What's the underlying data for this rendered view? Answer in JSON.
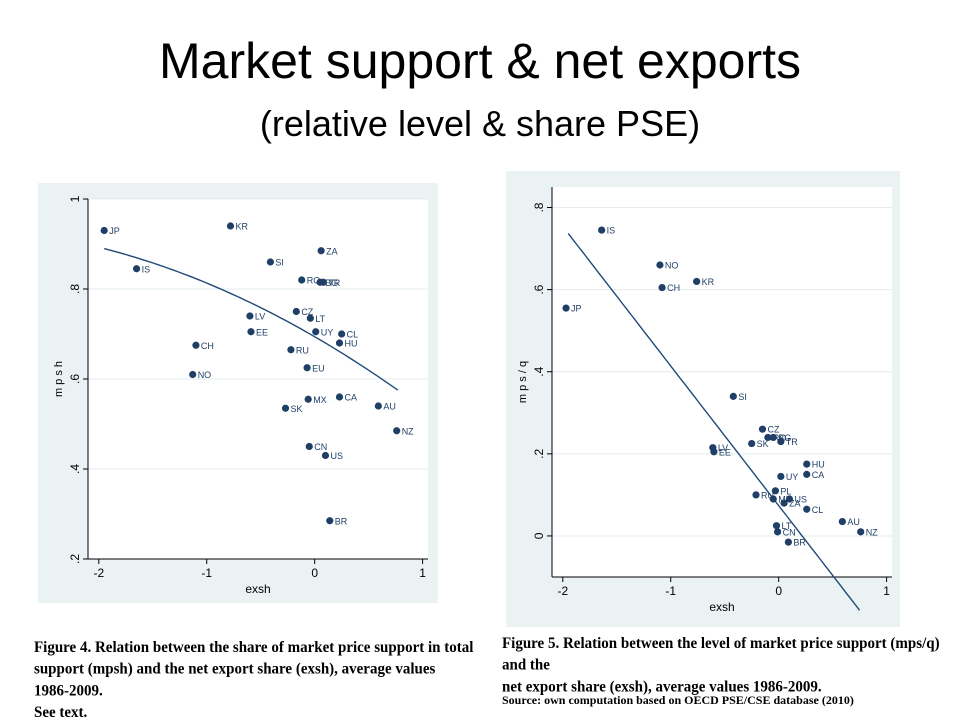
{
  "title": "Market support & net exports",
  "subtitle": "(relative level & share PSE)",
  "left_caption": [
    "Figure 4. Relation between the share of market price support in total",
    "support (mpsh) and the net export share (exsh), average values 1986-2009.",
    "See text."
  ],
  "right_caption": [
    "Figure 5. Relation between the level of market price support (mps/q) and the",
    "net export share (exsh), average values 1986-2009."
  ],
  "source_note": "Source: own computation based on OECD PSE/CSE database (2010)",
  "colors": {
    "point": "#1f3f66",
    "fit": "#1f4a78",
    "plot_bg": "#ffffff",
    "panel_bg": "#eaf2f3",
    "axis": "#000000"
  },
  "chart_data": [
    {
      "type": "scatter",
      "title": "",
      "xlabel": "exsh",
      "ylabel": "m p s h",
      "xlim": [
        -2.1,
        1.05
      ],
      "ylim": [
        0.2,
        1.0
      ],
      "xticks": [
        "-2",
        "-1",
        "0",
        "1"
      ],
      "yticks": [
        ".2",
        ".4",
        ".6",
        ".8",
        "1"
      ],
      "grid": true,
      "fit": {
        "type": "quadratic",
        "coef": [
          0.694,
          -0.139,
          -0.0198
        ],
        "x_range": [
          -1.95,
          0.77
        ]
      },
      "points": [
        {
          "label": "JP",
          "x": -1.95,
          "y": 0.93
        },
        {
          "label": "IS",
          "x": -1.65,
          "y": 0.845
        },
        {
          "label": "KR",
          "x": -0.78,
          "y": 0.94
        },
        {
          "label": "SI",
          "x": -0.41,
          "y": 0.86
        },
        {
          "label": "ZA",
          "x": 0.06,
          "y": 0.885
        },
        {
          "label": "RO",
          "x": -0.12,
          "y": 0.82
        },
        {
          "label": "BG",
          "x": 0.05,
          "y": 0.815
        },
        {
          "label": "TR",
          "x": 0.08,
          "y": 0.815
        },
        {
          "label": "CZ",
          "x": -0.17,
          "y": 0.75
        },
        {
          "label": "LV",
          "x": -0.6,
          "y": 0.74
        },
        {
          "label": "LT",
          "x": -0.04,
          "y": 0.735
        },
        {
          "label": "EE",
          "x": -0.59,
          "y": 0.705
        },
        {
          "label": "UY",
          "x": 0.01,
          "y": 0.705
        },
        {
          "label": "CL",
          "x": 0.25,
          "y": 0.7
        },
        {
          "label": "HU",
          "x": 0.23,
          "y": 0.68
        },
        {
          "label": "CH",
          "x": -1.1,
          "y": 0.675
        },
        {
          "label": "RU",
          "x": -0.22,
          "y": 0.665
        },
        {
          "label": "EU",
          "x": -0.07,
          "y": 0.625
        },
        {
          "label": "NO",
          "x": -1.13,
          "y": 0.61
        },
        {
          "label": "CA",
          "x": 0.23,
          "y": 0.56
        },
        {
          "label": "MX",
          "x": -0.06,
          "y": 0.555
        },
        {
          "label": "AU",
          "x": 0.59,
          "y": 0.54
        },
        {
          "label": "SK",
          "x": -0.27,
          "y": 0.535
        },
        {
          "label": "NZ",
          "x": 0.76,
          "y": 0.485
        },
        {
          "label": "CN",
          "x": -0.05,
          "y": 0.45
        },
        {
          "label": "US",
          "x": 0.1,
          "y": 0.43
        },
        {
          "label": "BR",
          "x": 0.14,
          "y": 0.285
        }
      ]
    },
    {
      "type": "scatter",
      "title": "",
      "xlabel": "exsh",
      "ylabel": "m p s / q",
      "xlim": [
        -2.1,
        1.05
      ],
      "ylim": [
        -0.1,
        0.85
      ],
      "xticks": [
        "-2",
        "-1",
        "0",
        "1"
      ],
      "yticks": [
        "0",
        ".2",
        ".4",
        ".6",
        ".8"
      ],
      "grid": true,
      "fit": {
        "type": "linear",
        "coef": [
          0.074,
          -0.34
        ],
        "x_range": [
          -1.95,
          0.75
        ]
      },
      "points": [
        {
          "label": "IS",
          "x": -1.64,
          "y": 0.745
        },
        {
          "label": "NO",
          "x": -1.1,
          "y": 0.66
        },
        {
          "label": "KR",
          "x": -0.76,
          "y": 0.62
        },
        {
          "label": "CH",
          "x": -1.08,
          "y": 0.605
        },
        {
          "label": "JP",
          "x": -1.97,
          "y": 0.555
        },
        {
          "label": "SI",
          "x": -0.42,
          "y": 0.34
        },
        {
          "label": "CZ",
          "x": -0.15,
          "y": 0.26
        },
        {
          "label": "RO",
          "x": -0.1,
          "y": 0.24
        },
        {
          "label": "BG",
          "x": -0.05,
          "y": 0.24
        },
        {
          "label": "TR",
          "x": 0.02,
          "y": 0.23
        },
        {
          "label": "SK",
          "x": -0.25,
          "y": 0.225
        },
        {
          "label": "LV",
          "x": -0.61,
          "y": 0.215
        },
        {
          "label": "EE",
          "x": -0.6,
          "y": 0.205
        },
        {
          "label": "HU",
          "x": 0.26,
          "y": 0.175
        },
        {
          "label": "CA",
          "x": 0.26,
          "y": 0.15
        },
        {
          "label": "UY",
          "x": 0.02,
          "y": 0.145
        },
        {
          "label": "PL",
          "x": -0.03,
          "y": 0.11
        },
        {
          "label": "RU",
          "x": -0.21,
          "y": 0.1
        },
        {
          "label": "MX",
          "x": -0.05,
          "y": 0.09
        },
        {
          "label": "US",
          "x": 0.1,
          "y": 0.09
        },
        {
          "label": "ZA",
          "x": 0.05,
          "y": 0.08
        },
        {
          "label": "CL",
          "x": 0.26,
          "y": 0.065
        },
        {
          "label": "AU",
          "x": 0.59,
          "y": 0.035
        },
        {
          "label": "LT",
          "x": -0.02,
          "y": 0.025
        },
        {
          "label": "NZ",
          "x": 0.76,
          "y": 0.01
        },
        {
          "label": "CN",
          "x": -0.01,
          "y": 0.01
        },
        {
          "label": "BR",
          "x": 0.09,
          "y": -0.015
        }
      ]
    }
  ]
}
